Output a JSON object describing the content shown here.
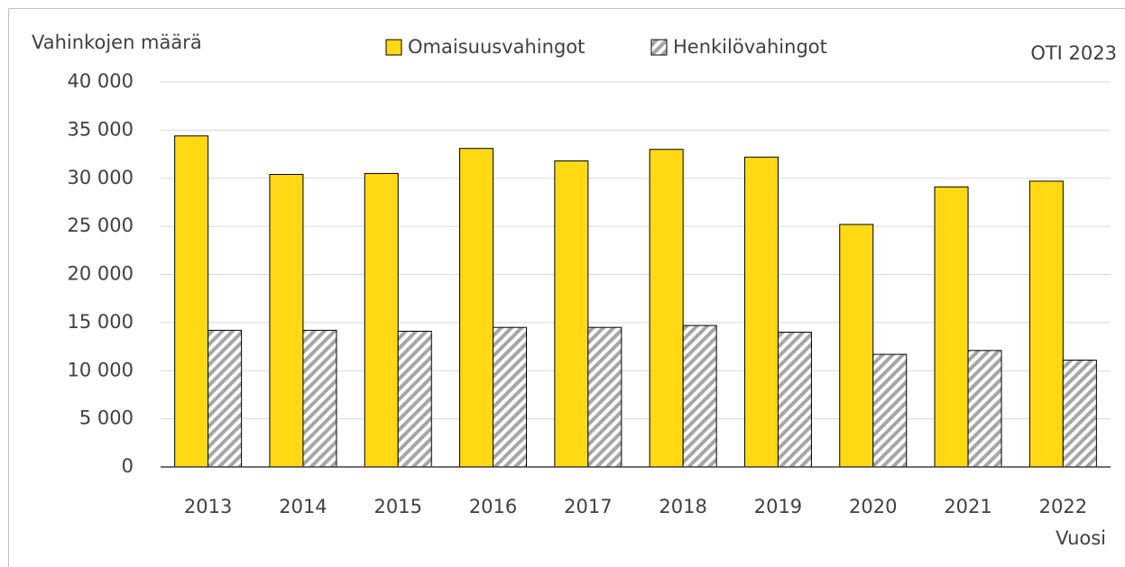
{
  "chart_data": {
    "type": "bar",
    "annotations": [
      "Vahinkojen määrä",
      "OTI 2023",
      "Vuosi"
    ],
    "categories": [
      "2013",
      "2014",
      "2015",
      "2016",
      "2017",
      "2018",
      "2019",
      "2020",
      "2021",
      "2022"
    ],
    "series": [
      {
        "name": "Omaisuusvahingot",
        "color": "#ffd914",
        "values": [
          34400,
          30400,
          30500,
          33100,
          31800,
          33000,
          32200,
          25200,
          29100,
          29700
        ]
      },
      {
        "name": "Henkilövahingot",
        "color": "#a6a6a6",
        "pattern": "diagonal",
        "values": [
          14200,
          14200,
          14100,
          14500,
          14500,
          14700,
          14000,
          11700,
          12100,
          11100
        ]
      }
    ],
    "ylim": [
      0,
      40000
    ],
    "yticks": [
      0,
      {
        "value": 5000,
        "label": "5 000"
      },
      {
        "value": 10000,
        "label": "10 000"
      },
      {
        "value": 15000,
        "label": "15 000"
      },
      {
        "value": 20000,
        "label": "20 000"
      },
      {
        "value": 25000,
        "label": "25 000"
      },
      {
        "value": 30000,
        "label": "30 000"
      },
      {
        "value": 35000,
        "label": "35 000"
      },
      {
        "value": 40000,
        "label": "40 000"
      }
    ],
    "grid": true,
    "legend": "top"
  }
}
